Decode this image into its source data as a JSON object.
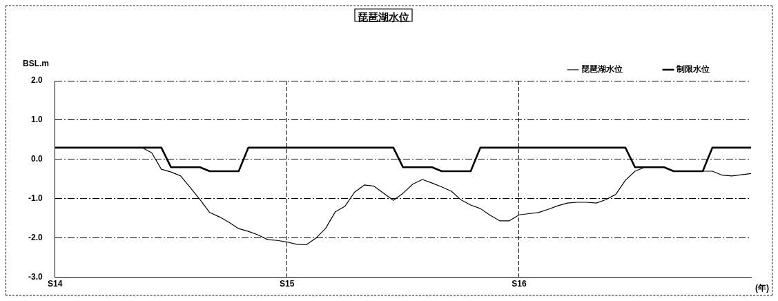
{
  "chart_data": {
    "type": "line",
    "title": "琵琶湖水位",
    "ylabel": "BSL.m",
    "xlabel": "(年)",
    "categories": [
      "S14",
      null,
      null,
      null,
      null,
      null,
      null,
      null,
      null,
      null,
      null,
      null,
      null,
      null,
      null,
      null,
      null,
      null,
      null,
      null,
      null,
      null,
      null,
      null,
      "S15",
      null,
      null,
      null,
      null,
      null,
      null,
      null,
      null,
      null,
      null,
      null,
      null,
      null,
      null,
      null,
      null,
      null,
      null,
      null,
      null,
      null,
      null,
      null,
      "S16",
      null,
      null,
      null,
      null,
      null,
      null,
      null,
      null,
      null,
      null,
      null,
      null,
      null,
      null,
      null,
      null,
      null,
      null,
      null,
      null,
      null,
      null,
      null,
      null
    ],
    "ylim": [
      -3,
      2
    ],
    "yticks": [
      {
        "value": -3,
        "label": "-3.0"
      },
      {
        "value": -2,
        "label": "-2.0"
      },
      {
        "value": -1,
        "label": "-1.0"
      },
      {
        "value": 0,
        "label": "0.0"
      },
      {
        "value": 1,
        "label": "1.0"
      },
      {
        "value": 2,
        "label": "2.0"
      }
    ],
    "grid": true,
    "legend": "top right",
    "marker": "none",
    "series": [
      {
        "name": "琵琶湖水位",
        "color": "#000000",
        "values": [
          0.3,
          0.3,
          0.3,
          0.3,
          0.3,
          0.3,
          0.3,
          0.3,
          0.3,
          0.3,
          0.17,
          -0.25,
          -0.32,
          -0.42,
          -0.72,
          -1.02,
          -1.35,
          -1.46,
          -1.6,
          -1.76,
          -1.83,
          -1.92,
          -2.04,
          -2.06,
          -2.1,
          -2.16,
          -2.17,
          -2.0,
          -1.75,
          -1.33,
          -1.19,
          -0.83,
          -0.65,
          -0.68,
          -0.86,
          -1.04,
          -0.86,
          -0.63,
          -0.51,
          -0.6,
          -0.7,
          -0.81,
          -1.03,
          -1.16,
          -1.25,
          -1.42,
          -1.56,
          -1.56,
          -1.41,
          -1.38,
          -1.35,
          -1.27,
          -1.18,
          -1.11,
          -1.09,
          -1.09,
          -1.11,
          -1.02,
          -0.89,
          -0.53,
          -0.3,
          -0.2,
          -0.2,
          -0.2,
          -0.3,
          -0.3,
          -0.3,
          -0.3,
          -0.3,
          -0.4,
          -0.42,
          -0.39,
          -0.36
        ]
      },
      {
        "name": "制限水位",
        "color": "#000000",
        "values": [
          0.3,
          0.3,
          0.3,
          0.3,
          0.3,
          0.3,
          0.3,
          0.3,
          0.3,
          0.3,
          0.3,
          0.3,
          -0.2,
          -0.2,
          -0.2,
          -0.2,
          -0.3,
          -0.3,
          -0.3,
          -0.3,
          0.3,
          0.3,
          0.3,
          0.3,
          0.3,
          0.3,
          0.3,
          0.3,
          0.3,
          0.3,
          0.3,
          0.3,
          0.3,
          0.3,
          0.3,
          0.3,
          -0.2,
          -0.2,
          -0.2,
          -0.2,
          -0.3,
          -0.3,
          -0.3,
          -0.3,
          0.3,
          0.3,
          0.3,
          0.3,
          0.3,
          0.3,
          0.3,
          0.3,
          0.3,
          0.3,
          0.3,
          0.3,
          0.3,
          0.3,
          0.3,
          0.3,
          -0.2,
          -0.2,
          -0.2,
          -0.2,
          -0.3,
          -0.3,
          -0.3,
          -0.3,
          0.3,
          0.3,
          0.3,
          0.3,
          0.3
        ]
      }
    ]
  }
}
